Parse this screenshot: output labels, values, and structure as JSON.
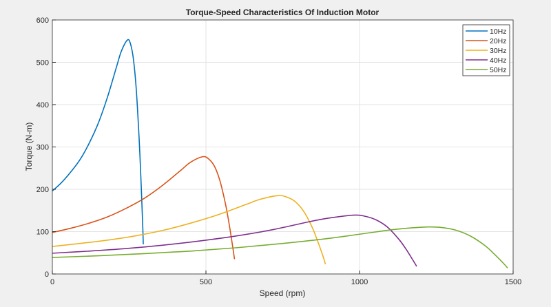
{
  "chart_data": {
    "type": "line",
    "title": "Torque-Speed Characteristics Of Induction Motor",
    "xlabel": "Speed (rpm)",
    "ylabel": "Torque (N-m)",
    "xlim": [
      0,
      1500
    ],
    "ylim": [
      0,
      600
    ],
    "xticks": [
      0,
      500,
      1000,
      1500
    ],
    "yticks": [
      0,
      100,
      200,
      300,
      400,
      500,
      600
    ],
    "grid": true,
    "legend_position": "top-right",
    "series": [
      {
        "name": "10Hz",
        "color": "#0072BD",
        "x": [
          0,
          30,
          60,
          90,
          120,
          150,
          180,
          210,
          225,
          245,
          255,
          264,
          273,
          282,
          288,
          294,
          296
        ],
        "y": [
          196,
          216,
          241,
          270,
          309,
          357,
          419,
          492,
          527,
          553,
          542,
          507,
          438,
          327,
          231,
          119,
          70
        ]
      },
      {
        "name": "20Hz",
        "color": "#D95319",
        "x": [
          0,
          60,
          120,
          180,
          240,
          300,
          360,
          420,
          450,
          490,
          510,
          528,
          546,
          564,
          576,
          588,
          593
        ],
        "y": [
          98,
          108,
          120,
          135,
          155,
          179,
          210,
          246,
          264,
          277,
          271,
          254,
          219,
          164,
          116,
          60,
          35
        ]
      },
      {
        "name": "30Hz",
        "color": "#EDB120",
        "x": [
          0,
          90,
          180,
          270,
          360,
          450,
          540,
          630,
          675,
          735,
          765,
          792,
          819,
          846,
          864,
          882,
          889
        ],
        "y": [
          65,
          72,
          80,
          90,
          103,
          120,
          140,
          164,
          176,
          185,
          181,
          170,
          147,
          110,
          77,
          40,
          23
        ]
      },
      {
        "name": "40Hz",
        "color": "#7E2F8E",
        "x": [
          0,
          120,
          240,
          360,
          480,
          600,
          720,
          840,
          900,
          980,
          1020,
          1056,
          1092,
          1128,
          1152,
          1176,
          1186
        ],
        "y": [
          49,
          54,
          60,
          68,
          78,
          90,
          105,
          124,
          132,
          139,
          136,
          127,
          110,
          82,
          58,
          30,
          18
        ]
      },
      {
        "name": "50Hz",
        "color": "#77AC30",
        "x": [
          0,
          150,
          300,
          450,
          600,
          750,
          900,
          1050,
          1125,
          1225,
          1275,
          1320,
          1365,
          1410,
          1440,
          1470,
          1482
        ],
        "y": [
          39,
          43,
          48,
          54,
          62,
          72,
          84,
          99,
          106,
          111,
          109,
          102,
          88,
          66,
          46,
          24,
          14
        ]
      }
    ]
  }
}
